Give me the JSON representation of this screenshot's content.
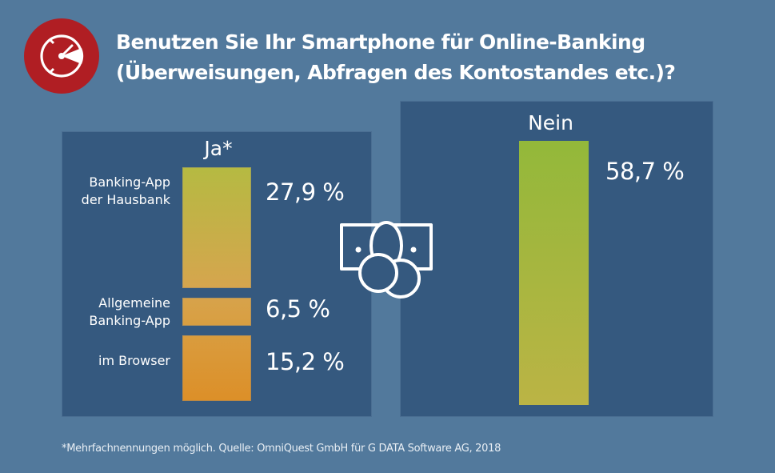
{
  "title": {
    "line1": "Benutzen Sie Ihr Smartphone für Online-Banking",
    "line2": "(Überweisungen, Abfragen des Kontostandes etc.)?"
  },
  "icons": {
    "badge": "speedometer-icon",
    "center": "money-bill-coins-icon"
  },
  "colors": {
    "background": "#52799c",
    "panel": "#35597f",
    "badge": "#b01e23",
    "ja_top": "#b5ba42",
    "ja_mid": "#d6a64f",
    "ja_bottom": "#dc8f28",
    "nein_top": "#93b83a",
    "nein_bottom": "#bbb445"
  },
  "chart_data": {
    "type": "bar",
    "title": "Benutzen Sie Ihr Smartphone für Online-Banking (Überweisungen, Abfragen des Kontostandes etc.)?",
    "groups": [
      {
        "name": "Ja*",
        "stacked": true,
        "categories": [
          "Banking-App der Hausbank",
          "Allgemeine Banking-App",
          "im Browser"
        ],
        "values": [
          27.9,
          6.5,
          15.2
        ],
        "labels": [
          "27,9 %",
          "6,5 %",
          "15,2 %"
        ]
      },
      {
        "name": "Nein",
        "stacked": false,
        "categories": [
          "Nein"
        ],
        "values": [
          58.7
        ],
        "labels": [
          "58,7 %"
        ]
      }
    ],
    "unit": "%",
    "xlabel": "",
    "ylabel": ""
  },
  "ja": {
    "heading": "Ja*",
    "items": [
      {
        "label_line1": "Banking-App",
        "label_line2": "der Hausbank",
        "pct": "27,9 %"
      },
      {
        "label_line1": "Allgemeine",
        "label_line2": "Banking-App",
        "pct": "6,5 %"
      },
      {
        "label_line1": "im Browser",
        "label_line2": "",
        "pct": "15,2 %"
      }
    ]
  },
  "nein": {
    "heading": "Nein",
    "pct": "58,7 %"
  },
  "footnote": "*Mehrfachnennungen möglich. Quelle: OmniQuest GmbH für G DATA Software AG, 2018"
}
